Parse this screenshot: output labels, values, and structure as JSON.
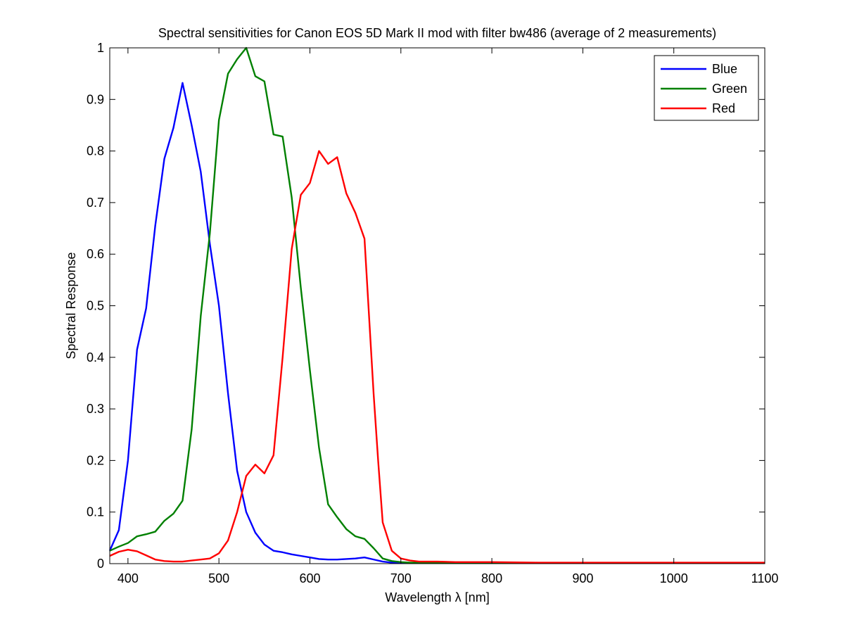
{
  "chart_data": {
    "type": "line",
    "title": "Spectral sensitivities for Canon EOS 5D Mark II mod with filter bw486 (average of 2 measurements)",
    "xlabel": "Wavelength λ [nm]",
    "ylabel": "Spectral Response",
    "xlim": [
      380,
      1100
    ],
    "ylim": [
      0,
      1
    ],
    "x_ticks": [
      400,
      500,
      600,
      700,
      800,
      900,
      1000,
      1100
    ],
    "y_ticks": [
      0,
      0.1,
      0.2,
      0.3,
      0.4,
      0.5,
      0.6,
      0.7,
      0.8,
      0.9,
      1
    ],
    "x_tick_labels": [
      "400",
      "500",
      "600",
      "700",
      "800",
      "900",
      "1000",
      "1100"
    ],
    "y_tick_labels": [
      "0",
      "0.1",
      "0.2",
      "0.3",
      "0.4",
      "0.5",
      "0.6",
      "0.7",
      "0.8",
      "0.9",
      "1"
    ],
    "grid": false,
    "legend_position": "top-right",
    "series": [
      {
        "name": "Blue",
        "color": "#0000ff",
        "x": [
          380,
          390,
          400,
          410,
          420,
          430,
          440,
          450,
          460,
          470,
          480,
          490,
          500,
          510,
          520,
          530,
          540,
          550,
          560,
          570,
          580,
          590,
          600,
          610,
          620,
          630,
          640,
          650,
          660,
          670,
          680,
          690,
          700,
          710,
          720,
          740,
          760,
          780,
          800,
          850,
          900,
          950,
          1000,
          1050,
          1100
        ],
        "y": [
          0.025,
          0.065,
          0.2,
          0.415,
          0.495,
          0.655,
          0.785,
          0.845,
          0.932,
          0.85,
          0.76,
          0.62,
          0.5,
          0.33,
          0.18,
          0.1,
          0.06,
          0.037,
          0.025,
          0.022,
          0.018,
          0.015,
          0.012,
          0.009,
          0.008,
          0.008,
          0.009,
          0.01,
          0.012,
          0.008,
          0.004,
          0.002,
          0.001,
          0.001,
          0.001,
          0.001,
          0.001,
          0.001,
          0.001,
          0.001,
          0.001,
          0.001,
          0.001,
          0.001,
          0.001
        ]
      },
      {
        "name": "Green",
        "color": "#008000",
        "x": [
          380,
          390,
          400,
          410,
          420,
          430,
          440,
          450,
          460,
          470,
          480,
          490,
          500,
          510,
          520,
          530,
          540,
          550,
          560,
          570,
          580,
          590,
          600,
          610,
          620,
          630,
          640,
          650,
          660,
          670,
          680,
          690,
          700,
          710,
          720,
          740,
          760,
          780,
          800,
          850,
          900,
          950,
          1000,
          1050,
          1100
        ],
        "y": [
          0.025,
          0.033,
          0.04,
          0.053,
          0.057,
          0.062,
          0.083,
          0.097,
          0.122,
          0.26,
          0.48,
          0.64,
          0.86,
          0.95,
          0.978,
          1.0,
          0.945,
          0.935,
          0.832,
          0.828,
          0.71,
          0.535,
          0.375,
          0.225,
          0.115,
          0.09,
          0.067,
          0.053,
          0.048,
          0.03,
          0.01,
          0.005,
          0.003,
          0.002,
          0.002,
          0.002,
          0.001,
          0.001,
          0.001,
          0.001,
          0.001,
          0.001,
          0.001,
          0.001,
          0.001
        ]
      },
      {
        "name": "Red",
        "color": "#ff0000",
        "x": [
          380,
          390,
          400,
          410,
          420,
          430,
          440,
          450,
          460,
          470,
          480,
          490,
          500,
          510,
          520,
          530,
          540,
          550,
          560,
          570,
          580,
          590,
          600,
          610,
          620,
          630,
          640,
          650,
          660,
          670,
          675,
          680,
          690,
          700,
          710,
          720,
          740,
          760,
          780,
          800,
          850,
          900,
          950,
          1000,
          1050,
          1100
        ],
        "y": [
          0.015,
          0.023,
          0.027,
          0.024,
          0.016,
          0.008,
          0.005,
          0.004,
          0.004,
          0.006,
          0.008,
          0.01,
          0.02,
          0.045,
          0.1,
          0.17,
          0.192,
          0.175,
          0.21,
          0.4,
          0.61,
          0.715,
          0.738,
          0.8,
          0.775,
          0.788,
          0.718,
          0.68,
          0.63,
          0.33,
          0.2,
          0.08,
          0.025,
          0.01,
          0.006,
          0.004,
          0.004,
          0.003,
          0.003,
          0.003,
          0.002,
          0.002,
          0.002,
          0.002,
          0.002,
          0.002
        ]
      }
    ]
  }
}
